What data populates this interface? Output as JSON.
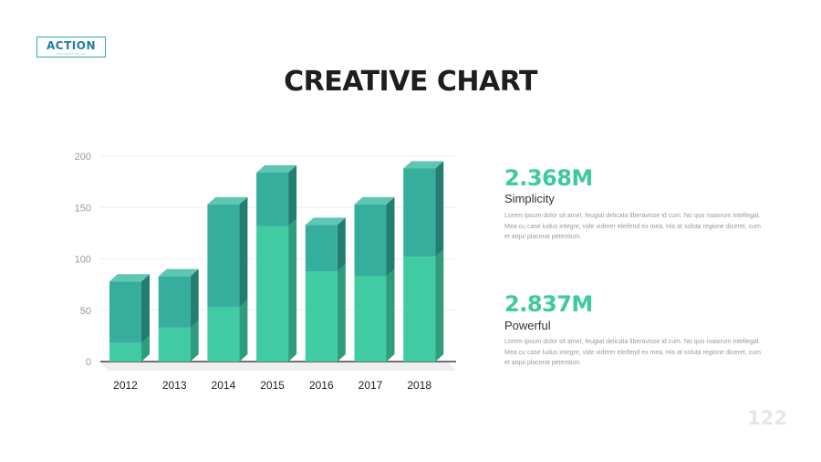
{
  "logo": {
    "text": "ACTION",
    "subtext": "PRESENTATION"
  },
  "title": "CREATIVE CHART",
  "chart_data": {
    "type": "bar",
    "stacked": true,
    "categories": [
      "2012",
      "2013",
      "2014",
      "2015",
      "2016",
      "2017",
      "2018"
    ],
    "series": [
      {
        "values": [
          18,
          33,
          53,
          132,
          88,
          83,
          102
        ]
      },
      {
        "values": [
          60,
          50,
          100,
          52,
          45,
          70,
          86
        ]
      }
    ],
    "ylim": [
      0,
      200
    ],
    "yticks": [
      0,
      50,
      100,
      150,
      200
    ],
    "colors": {
      "series0": "#40cba2",
      "series1": "#35ae9d"
    },
    "grid": true
  },
  "stats": [
    {
      "value": "2.368M",
      "label": "Simplicity",
      "text": "Lorem ipsum dolor sit amet, feugiat delicata liberavisse id cum. No quo maiorum intellegat. Mea cu case ludus integre, vide viderer eleifend ex mea. His at soluta regione diceret, cum et atqui placerat petentium."
    },
    {
      "value": "2.837M",
      "label": "Powerful",
      "text": "Lorem ipsum dolor sit amet, feugiat delicata liberavisse id cum. No quo maiorum intellegat. Mea cu case ludus integre, vide viderer eleifend ex mea. His at soluta regione diceret, cum et atqui placerat petentium."
    }
  ],
  "page_number": "122"
}
